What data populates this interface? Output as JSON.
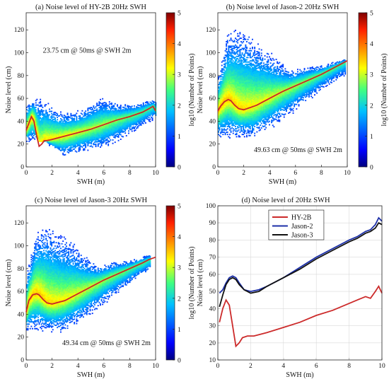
{
  "chart_data": [
    {
      "type": "heatmap",
      "title": "(a) Noise level of HY-2B 20Hz SWH",
      "xlabel": "SWH (m)",
      "ylabel": "Noise level (cm)",
      "xlim": [
        0,
        10
      ],
      "ylim": [
        0,
        135
      ],
      "xticks": [
        "0",
        "2",
        "4",
        "6",
        "8",
        "10"
      ],
      "yticks": [
        "0",
        "20",
        "40",
        "60",
        "80",
        "100",
        "120"
      ],
      "annotation": "23.75 cm @ 50ms @ SWH 2m",
      "annotation_position": "upper-middle",
      "colorbar": {
        "label": "log10 (Number of Points)",
        "ticks": [
          "0",
          "1",
          "2",
          "3",
          "4",
          "5"
        ],
        "range": [
          0,
          5
        ]
      },
      "trend": {
        "x": [
          0,
          0.2,
          0.4,
          0.6,
          0.8,
          1.0,
          1.2,
          1.4,
          1.6,
          2,
          3,
          4,
          5,
          6,
          7,
          8,
          9,
          9.5,
          9.8,
          10
        ],
        "y": [
          32,
          38,
          44,
          40,
          28,
          18,
          20,
          23,
          23,
          24,
          27,
          30,
          33,
          37,
          41,
          44,
          48,
          51,
          53,
          49
        ]
      },
      "density": {
        "lower": [
          22,
          22,
          22,
          14,
          8,
          10,
          12,
          14,
          15,
          18,
          22,
          27,
          32,
          38,
          42
        ],
        "upper": [
          55,
          60,
          58,
          52,
          48,
          48,
          50,
          55,
          60,
          58,
          55,
          55,
          55,
          58,
          58
        ],
        "xmax": 10
      }
    },
    {
      "type": "heatmap",
      "title": "(b) Noise level of Jason-2 20Hz SWH",
      "xlabel": "SWH (m)",
      "ylabel": "Noise level (cm)",
      "xlim": [
        0,
        10
      ],
      "ylim": [
        0,
        135
      ],
      "xticks": [
        "0",
        "2",
        "4",
        "6",
        "8",
        "10"
      ],
      "yticks": [
        "0",
        "20",
        "40",
        "60",
        "80",
        "100",
        "120"
      ],
      "annotation": "49.63 cm @ 50ms @ SWH 2m",
      "annotation_position": "lower-right",
      "colorbar": {
        "label": "log10 (Number of Points)",
        "ticks": [
          "0",
          "1",
          "2",
          "3",
          "4",
          "5"
        ],
        "range": [
          0,
          5
        ]
      },
      "trend": {
        "x": [
          0,
          0.2,
          0.5,
          0.8,
          1.0,
          1.3,
          1.6,
          2,
          3,
          4,
          5,
          6,
          7,
          8,
          9,
          9.5,
          10
        ],
        "y": [
          49,
          53,
          57,
          59,
          58,
          54,
          51,
          50,
          54,
          60,
          66,
          71,
          76,
          81,
          87,
          90,
          93
        ]
      },
      "density": {
        "lower": [
          25,
          25,
          25,
          25,
          25,
          30,
          34,
          40,
          45,
          52,
          58,
          64,
          70,
          75,
          80
        ],
        "upper": [
          80,
          115,
          120,
          118,
          110,
          105,
          98,
          90,
          85,
          86,
          88,
          88,
          90,
          92,
          94
        ],
        "xmax": 9.8
      }
    },
    {
      "type": "heatmap",
      "title": "(c) Noise level of Jason-3 20Hz SWH",
      "xlabel": "SWH (m)",
      "ylabel": "Noise level (cm)",
      "xlim": [
        0,
        10
      ],
      "ylim": [
        0,
        135
      ],
      "xticks": [
        "0",
        "2",
        "4",
        "6",
        "8",
        "10"
      ],
      "yticks": [
        "0",
        "20",
        "40",
        "60",
        "80",
        "100",
        "120"
      ],
      "annotation": "49.34 cm @ 50ms @ SWH 2m",
      "annotation_position": "lower-right",
      "colorbar": {
        "label": "log10 (Number of Points)",
        "ticks": [
          "0",
          "1",
          "2",
          "3",
          "4",
          "5"
        ],
        "range": [
          0,
          5
        ]
      },
      "trend": {
        "x": [
          0,
          0.2,
          0.5,
          0.8,
          1.0,
          1.3,
          1.6,
          2,
          3,
          4,
          5,
          6,
          7,
          8,
          9,
          9.5,
          10
        ],
        "y": [
          42,
          52,
          57,
          58,
          57,
          53,
          50,
          49,
          52,
          58,
          64,
          70,
          75,
          80,
          85,
          88,
          90
        ]
      },
      "density": {
        "lower": [
          25,
          25,
          25,
          24,
          24,
          28,
          32,
          38,
          44,
          50,
          56,
          62,
          68,
          73,
          78
        ],
        "upper": [
          75,
          110,
          118,
          115,
          108,
          104,
          96,
          88,
          83,
          84,
          86,
          86,
          88,
          90,
          92
        ],
        "xmax": 9.6
      }
    },
    {
      "type": "line",
      "title": "(d) Noise level of 20Hz SWH",
      "xlabel": "SWH (m)",
      "ylabel": "Noise level (cm)",
      "xlim": [
        0,
        10
      ],
      "ylim": [
        10,
        100
      ],
      "xticks": [
        "0",
        "2",
        "4",
        "6",
        "8",
        "10"
      ],
      "yticks": [
        "10",
        "20",
        "30",
        "40",
        "50",
        "60",
        "70",
        "80",
        "90",
        "100"
      ],
      "legend_position": "top-middle",
      "series": [
        {
          "name": "HY-2B",
          "color": "#cc2a2a",
          "x": [
            0.1,
            0.3,
            0.5,
            0.7,
            0.9,
            1.1,
            1.3,
            1.5,
            1.8,
            2.2,
            3,
            4,
            5,
            6,
            7,
            8,
            8.5,
            9,
            9.3,
            9.6,
            9.8,
            10
          ],
          "y": [
            32,
            40,
            45,
            42,
            30,
            18,
            20,
            23,
            24,
            24,
            26,
            29,
            32,
            36,
            39,
            43,
            45,
            47,
            46,
            50,
            53,
            49
          ]
        },
        {
          "name": "Jason-2",
          "color": "#1c2fa8",
          "x": [
            0.1,
            0.3,
            0.5,
            0.7,
            0.9,
            1.1,
            1.3,
            1.6,
            2,
            2.5,
            3,
            4,
            5,
            6,
            7,
            8,
            8.5,
            9,
            9.3,
            9.6,
            9.8,
            10
          ],
          "y": [
            49,
            51,
            55,
            58,
            59,
            58,
            55,
            51,
            50,
            51,
            53,
            58,
            64,
            70,
            75,
            80,
            82,
            85,
            86,
            89,
            93,
            91
          ]
        },
        {
          "name": "Jason-3",
          "color": "#111111",
          "x": [
            0.1,
            0.3,
            0.5,
            0.7,
            0.9,
            1.1,
            1.3,
            1.6,
            2,
            2.5,
            3,
            4,
            5,
            6,
            7,
            8,
            8.5,
            9,
            9.3,
            9.6,
            9.8,
            10
          ],
          "y": [
            41,
            48,
            54,
            57,
            58,
            57,
            54,
            51,
            49,
            50,
            53,
            58,
            63,
            69,
            74,
            79,
            81,
            84,
            85,
            87,
            90,
            89
          ]
        }
      ]
    }
  ]
}
